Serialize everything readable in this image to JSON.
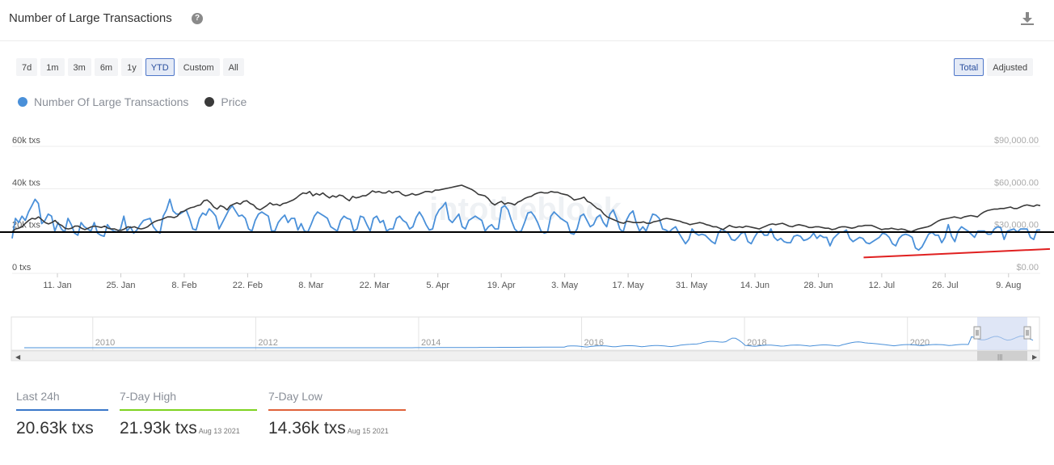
{
  "header": {
    "title": "Number of Large Transactions",
    "help_icon": "question-circle-icon",
    "download_icon": "download-icon"
  },
  "range_buttons": [
    {
      "label": "7d",
      "active": false
    },
    {
      "label": "1m",
      "active": false
    },
    {
      "label": "3m",
      "active": false
    },
    {
      "label": "6m",
      "active": false
    },
    {
      "label": "1y",
      "active": false
    },
    {
      "label": "YTD",
      "active": true
    },
    {
      "label": "Custom",
      "active": false
    },
    {
      "label": "All",
      "active": false
    }
  ],
  "mode_buttons": [
    {
      "label": "Total",
      "active": true
    },
    {
      "label": "Adjusted",
      "active": false
    }
  ],
  "legend": [
    {
      "label": "Number Of Large Transactions",
      "color": "#4a90d9"
    },
    {
      "label": "Price",
      "color": "#3a3a3a"
    }
  ],
  "stats": [
    {
      "label": "Last 24h",
      "value": "20.63k txs",
      "date": "",
      "color": "#3a78c9"
    },
    {
      "label": "7-Day High",
      "value": "21.93k txs",
      "date": "Aug 13 2021",
      "color": "#7ed321"
    },
    {
      "label": "7-Day Low",
      "value": "14.36k txs",
      "date": "Aug 15 2021",
      "color": "#e0623a"
    }
  ],
  "navigator": {
    "year_labels": [
      "2010",
      "2012",
      "2014",
      "2016",
      "2018",
      "2020"
    ]
  },
  "chart_data": {
    "type": "line",
    "watermark": "intotheblock",
    "x_start": "2021-01-01",
    "x_end": "2021-08-16",
    "x_tick_labels": [
      "11. Jan",
      "25. Jan",
      "8. Feb",
      "22. Feb",
      "8. Mar",
      "22. Mar",
      "5. Apr",
      "19. Apr",
      "3. May",
      "17. May",
      "31. May",
      "14. Jun",
      "28. Jun",
      "12. Jul",
      "26. Jul",
      "9. Aug"
    ],
    "y_left": {
      "ticks": [
        "0 txs",
        "20k txs",
        "40k txs",
        "60k txs"
      ],
      "range": [
        0,
        60000
      ]
    },
    "y_right": {
      "ticks": [
        "$0.00",
        "$30,000.00",
        "$60,000.00",
        "$90,000.00"
      ],
      "range": [
        0,
        90000
      ]
    },
    "series": [
      {
        "name": "Number Of Large Transactions",
        "color": "#4a90d9",
        "axis": "left",
        "values": [
          16500,
          26000,
          24000,
          27000,
          25000,
          29000,
          32000,
          35000,
          33000,
          23500,
          25000,
          28000,
          27000,
          20000,
          24000,
          21000,
          19500,
          26000,
          23000,
          19000,
          18000,
          24000,
          22000,
          21000,
          20000,
          24000,
          19000,
          18000,
          17500,
          23000,
          21000,
          20000,
          19500,
          21000,
          27000,
          20000,
          22000,
          19000,
          20500,
          23000,
          25000,
          25500,
          26000,
          22000,
          20000,
          19000,
          27000,
          30000,
          35000,
          29500,
          28000,
          28000,
          29000,
          30000,
          26000,
          21000,
          20500,
          26000,
          28500,
          27500,
          30500,
          29000,
          27000,
          21000,
          24000,
          27000,
          30000,
          32000,
          29500,
          27000,
          27500,
          26000,
          21000,
          20000,
          25000,
          28000,
          29000,
          28000,
          27000,
          20000,
          20000,
          24000,
          26000,
          27500,
          24000,
          26000,
          26000,
          20500,
          23500,
          20000,
          19500,
          23000,
          27000,
          29000,
          28000,
          27000,
          26000,
          22000,
          21000,
          20000,
          25000,
          27000,
          26000,
          25500,
          20000,
          21000,
          27000,
          26500,
          23000,
          20000,
          26000,
          27000,
          24000,
          25000,
          20000,
          21000,
          21000,
          26000,
          27000,
          25000,
          24000,
          21000,
          22000,
          26500,
          29000,
          26500,
          23000,
          20500,
          21000,
          27000,
          30000,
          31500,
          33500,
          25500,
          24000,
          26000,
          28000,
          22000,
          21000,
          25000,
          26000,
          27000,
          26000,
          25000,
          20000,
          22000,
          23000,
          21000,
          21000,
          31000,
          32000,
          30000,
          25000,
          21000,
          19500,
          20000,
          24000,
          28500,
          29000,
          27000,
          24000,
          20000,
          19000,
          19500,
          27000,
          29000,
          27500,
          26000,
          25000,
          24000,
          19000,
          18500,
          21000,
          27000,
          28000,
          25000,
          22000,
          23000,
          26500,
          27500,
          24000,
          22000,
          28000,
          30000,
          26000,
          21000,
          19500,
          25000,
          28000,
          29500,
          24000,
          20000,
          22000,
          20000,
          24000,
          28000,
          27500,
          26000,
          21000,
          20500,
          19500,
          21000,
          22000,
          19000,
          16500,
          14000,
          16000,
          21000,
          19000,
          18000,
          18500,
          18000,
          16500,
          15000,
          14000,
          19000,
          21000,
          20000,
          19000,
          16000,
          15500,
          17000,
          19000,
          19500,
          15000,
          14000,
          17000,
          19500,
          20000,
          18000,
          18000,
          21000,
          17000,
          15500,
          16500,
          15000,
          14500,
          14500,
          17500,
          18000,
          17500,
          15500,
          16000,
          17000,
          19000,
          16500,
          18000,
          17000,
          17000,
          13000,
          16500,
          18000,
          19500,
          19500,
          20500,
          16500,
          15000,
          16000,
          17000,
          16500,
          14500,
          14000,
          15000,
          16000,
          17000,
          19000,
          18500,
          17000,
          14000,
          13000,
          16500,
          18000,
          18500,
          18000,
          17000,
          12000,
          11000,
          12500,
          15500,
          18500,
          19500,
          18000,
          18000,
          14500,
          17000,
          23000,
          17500,
          15000,
          20000,
          22000,
          21000,
          20000,
          18500,
          17000,
          20000,
          20000,
          20000,
          18500,
          18500,
          21000,
          22000,
          21500,
          16000,
          20000,
          20500,
          21000,
          19500,
          21000,
          21000,
          21000,
          17000,
          16000,
          20500,
          20500
        ]
      },
      {
        "name": "Price",
        "color": "#3a3a3a",
        "axis": "right",
        "values": [
          29300,
          31500,
          32000,
          33000,
          35500,
          37500,
          39000,
          38500,
          40000,
          38000,
          36000,
          35000,
          36000,
          37500,
          35000,
          34000,
          32000,
          31500,
          32000,
          33500,
          33500,
          32000,
          31000,
          32000,
          33000,
          33500,
          33000,
          32500,
          33500,
          32000,
          31500,
          31500,
          30500,
          30500,
          31500,
          33000,
          32500,
          33000,
          32000,
          31500,
          32000,
          33000,
          35000,
          36500,
          37500,
          38000,
          39000,
          40000,
          40000,
          39500,
          40500,
          43500,
          44000,
          45500,
          46500,
          47000,
          48000,
          48500,
          51500,
          52000,
          50000,
          47000,
          45500,
          48000,
          47000,
          45000,
          48000,
          49000,
          50000,
          49000,
          51000,
          51500,
          49500,
          48500,
          46000,
          45000,
          46500,
          48000,
          50000,
          48500,
          49000,
          48000,
          49500,
          50000,
          51000,
          52000,
          53500,
          55500,
          57000,
          56500,
          58000,
          55000,
          56500,
          55500,
          57000,
          55000,
          53500,
          55000,
          54000,
          55500,
          55000,
          53000,
          51500,
          54500,
          53500,
          54000,
          55000,
          55000,
          56500,
          58500,
          57500,
          58000,
          57000,
          57000,
          58500,
          57000,
          58000,
          58000,
          56000,
          55000,
          55500,
          56500,
          55500,
          56000,
          57000,
          58000,
          58000,
          57500,
          59000,
          59000,
          59500,
          60000,
          60500,
          61000,
          61500,
          62000,
          62500,
          61500,
          60500,
          59500,
          58000,
          56000,
          55500,
          55000,
          53000,
          50000,
          48500,
          50000,
          51000,
          49000,
          50000,
          49500,
          48500,
          50500,
          51500,
          53000,
          54000,
          54500,
          56000,
          57000,
          57500,
          57000,
          57000,
          58000,
          57500,
          57500,
          56500,
          56000,
          55500,
          54000,
          52000,
          52500,
          53000,
          54000,
          51000,
          50000,
          48000,
          46000,
          45000,
          42000,
          40000,
          39000,
          38000,
          37000,
          36000,
          35500,
          37000,
          36500,
          36000,
          36000,
          36000,
          36500,
          35500,
          35500,
          36500,
          37000,
          37500,
          38500,
          39000,
          38500,
          38000,
          37500,
          37000,
          36000,
          35500,
          34500,
          35000,
          35500,
          36000,
          35500,
          34500,
          34000,
          33000,
          33000,
          32000,
          31000,
          32500,
          34000,
          33000,
          32500,
          33000,
          32500,
          33500,
          33000,
          32500,
          32000,
          31500,
          32500,
          33500,
          34500,
          35000,
          34500,
          35000,
          35500,
          34500,
          33500,
          33000,
          34000,
          34500,
          34000,
          33500,
          32500,
          32500,
          33000,
          33000,
          32500,
          32000,
          32000,
          31000,
          31500,
          32500,
          33000,
          33000,
          32500,
          32000,
          32500,
          33500,
          33500,
          34000,
          34000,
          34000,
          33000,
          32000,
          31000,
          31500,
          31500,
          32000,
          31500,
          31000,
          31500,
          31000,
          30000,
          29500,
          30500,
          31500,
          32000,
          32500,
          33000,
          34000,
          35500,
          37000,
          38000,
          38500,
          39000,
          39500,
          40000,
          39500,
          39000,
          40000,
          40500,
          41000,
          40500,
          40000,
          42000,
          43500,
          44500,
          45000,
          45500,
          45500,
          46000,
          46000,
          46500,
          47000,
          46000,
          46000,
          47000,
          48000,
          48500,
          48000,
          47500,
          48500,
          48000
        ]
      }
    ],
    "annotations": [
      {
        "type": "horizontal_line",
        "axis": "left",
        "y": 19500,
        "color": "#000000"
      },
      {
        "type": "trend_line",
        "axis": "left",
        "from": [
          "2021-07-08",
          7500
        ],
        "to": [
          "2021-08-16",
          11500
        ],
        "color": "#e02020"
      }
    ]
  }
}
